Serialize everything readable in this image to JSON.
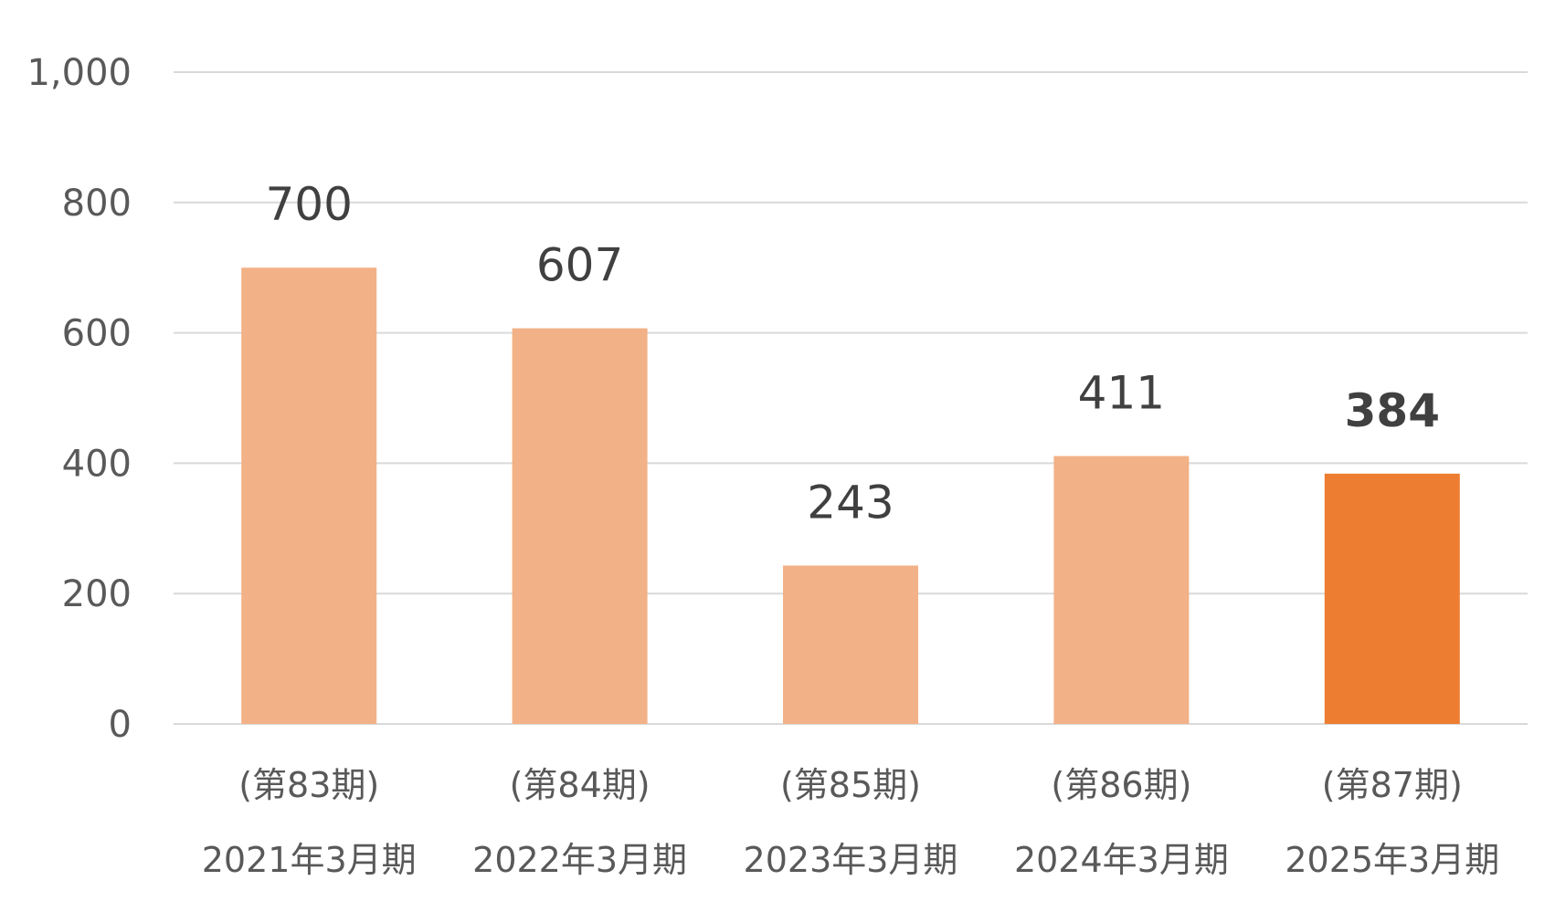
{
  "chart_data": {
    "type": "bar",
    "categories": [
      {
        "period": "(第83期)",
        "fiscal_year": "2021年3月期"
      },
      {
        "period": "(第84期)",
        "fiscal_year": "2022年3月期"
      },
      {
        "period": "(第85期)",
        "fiscal_year": "2023年3月期"
      },
      {
        "period": "(第86期)",
        "fiscal_year": "2024年3月期"
      },
      {
        "period": "(第87期)",
        "fiscal_year": "2025年3月期"
      }
    ],
    "values": [
      700,
      607,
      243,
      411,
      384
    ],
    "data_labels": [
      "700",
      "607",
      "243",
      "411",
      "384"
    ],
    "highlight_index": 4,
    "ylim": [
      0,
      1000
    ],
    "yticks": [
      0,
      200,
      400,
      600,
      800,
      1000
    ],
    "ytick_labels": [
      "0",
      "200",
      "400",
      "600",
      "800",
      "1,000"
    ],
    "title": "",
    "xlabel": "",
    "ylabel": "",
    "grid": true,
    "legend": "none",
    "colors": {
      "bar": "#F3B187",
      "highlight_bar": "#ED7D31",
      "gridline": "#D9D9D9",
      "axis_label": "#595959",
      "data_label": "#404040"
    }
  }
}
